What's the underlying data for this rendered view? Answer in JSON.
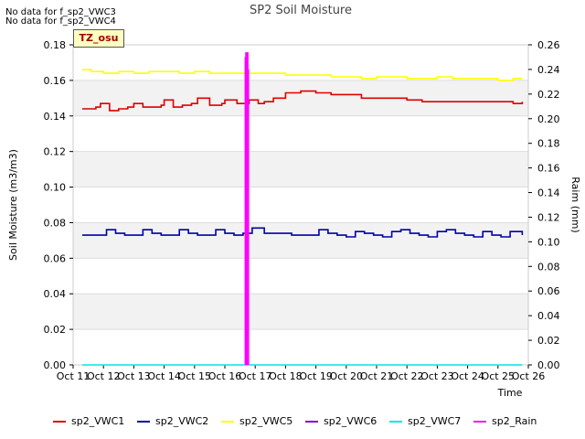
{
  "notes": [
    "No data for f_sp2_VWC3",
    "No data for f_sp2_VWC4"
  ],
  "tz_label": "TZ_osu",
  "chart_data": {
    "type": "line",
    "title": "SP2 Soil Moisture",
    "xlabel": "Time",
    "ylabel": "Soil Moisture (m3/m3)",
    "y2label": "Raim (mm)",
    "x_ticks": [
      "Oct 11",
      "Oct 12",
      "Oct 13",
      "Oct 14",
      "Oct 15",
      "Oct 16",
      "Oct 17",
      "Oct 18",
      "Oct 19",
      "Oct 20",
      "Oct 21",
      "Oct 22",
      "Oct 23",
      "Oct 24",
      "Oct 25",
      "Oct 26"
    ],
    "xlim": [
      0,
      15
    ],
    "ylim": [
      0,
      0.18
    ],
    "y_ticks": [
      0.0,
      0.02,
      0.04,
      0.06,
      0.08,
      0.1,
      0.12,
      0.14,
      0.16,
      0.18
    ],
    "y2lim": [
      0,
      0.26
    ],
    "y2_ticks": [
      0.0,
      0.02,
      0.04,
      0.06,
      0.08,
      0.1,
      0.12,
      0.14,
      0.16,
      0.18,
      0.2,
      0.22,
      0.24,
      0.26
    ],
    "series": [
      {
        "name": "sp2_VWC1",
        "color": "#dd0000",
        "axis": "left",
        "x": [
          0.3,
          0.5,
          0.75,
          0.9,
          1.0,
          1.2,
          1.5,
          1.8,
          2.0,
          2.3,
          2.6,
          2.9,
          3.0,
          3.3,
          3.6,
          3.9,
          4.1,
          4.5,
          4.9,
          5.0,
          5.4,
          5.8,
          6.1,
          6.3,
          6.6,
          7.0,
          7.5,
          8.0,
          8.5,
          9.0,
          9.5,
          10.0,
          10.5,
          11.0,
          11.5,
          12.0,
          12.5,
          13.0,
          13.5,
          14.0,
          14.5,
          14.8
        ],
        "y": [
          0.144,
          0.144,
          0.145,
          0.147,
          0.147,
          0.143,
          0.144,
          0.145,
          0.147,
          0.145,
          0.145,
          0.146,
          0.149,
          0.145,
          0.146,
          0.147,
          0.15,
          0.146,
          0.147,
          0.149,
          0.147,
          0.149,
          0.147,
          0.148,
          0.15,
          0.153,
          0.154,
          0.153,
          0.152,
          0.152,
          0.15,
          0.15,
          0.15,
          0.149,
          0.148,
          0.148,
          0.148,
          0.148,
          0.148,
          0.148,
          0.147,
          0.148
        ]
      },
      {
        "name": "sp2_VWC2",
        "color": "#0000aa",
        "axis": "left",
        "x": [
          0.3,
          0.6,
          0.9,
          1.1,
          1.4,
          1.7,
          2.0,
          2.3,
          2.6,
          2.9,
          3.2,
          3.5,
          3.8,
          4.1,
          4.4,
          4.7,
          5.0,
          5.3,
          5.6,
          5.9,
          6.3,
          6.6,
          6.9,
          7.2,
          7.5,
          7.8,
          8.1,
          8.4,
          8.7,
          9.0,
          9.3,
          9.6,
          9.9,
          10.2,
          10.5,
          10.8,
          11.1,
          11.4,
          11.7,
          12.0,
          12.3,
          12.6,
          12.9,
          13.2,
          13.5,
          13.8,
          14.1,
          14.4,
          14.8
        ],
        "y": [
          0.073,
          0.073,
          0.073,
          0.076,
          0.074,
          0.073,
          0.073,
          0.076,
          0.074,
          0.073,
          0.073,
          0.076,
          0.074,
          0.073,
          0.073,
          0.076,
          0.074,
          0.073,
          0.074,
          0.077,
          0.074,
          0.074,
          0.074,
          0.073,
          0.073,
          0.073,
          0.076,
          0.074,
          0.073,
          0.072,
          0.075,
          0.074,
          0.073,
          0.072,
          0.075,
          0.076,
          0.074,
          0.073,
          0.072,
          0.075,
          0.076,
          0.074,
          0.073,
          0.072,
          0.075,
          0.073,
          0.072,
          0.075,
          0.073
        ]
      },
      {
        "name": "sp2_VWC5",
        "color": "#ffff00",
        "axis": "left",
        "x": [
          0.3,
          0.6,
          1.0,
          1.5,
          2.0,
          2.5,
          3.0,
          3.5,
          4.0,
          4.5,
          5.0,
          5.5,
          6.0,
          6.5,
          7.0,
          7.5,
          8.0,
          8.5,
          9.0,
          9.5,
          10.0,
          10.5,
          11.0,
          11.5,
          12.0,
          12.5,
          13.0,
          13.5,
          14.0,
          14.5,
          14.8
        ],
        "y": [
          0.166,
          0.165,
          0.164,
          0.165,
          0.164,
          0.165,
          0.165,
          0.164,
          0.165,
          0.164,
          0.164,
          0.164,
          0.164,
          0.164,
          0.163,
          0.163,
          0.163,
          0.162,
          0.162,
          0.161,
          0.162,
          0.162,
          0.161,
          0.161,
          0.162,
          0.161,
          0.161,
          0.161,
          0.16,
          0.161,
          0.161
        ]
      },
      {
        "name": "sp2_VWC6",
        "color": "#8800cc",
        "axis": "left",
        "x": [],
        "y": []
      },
      {
        "name": "sp2_VWC7",
        "color": "#00e5e5",
        "axis": "left",
        "x": [
          0.3,
          14.8
        ],
        "y": [
          0.0,
          0.0
        ]
      },
      {
        "name": "sp2_Rain",
        "color": "#ff00ff",
        "axis": "right",
        "type": "spike",
        "x": [
          5.68,
          5.7,
          5.72,
          5.75,
          5.77
        ],
        "y": [
          0.25,
          0.254,
          0.25,
          0.254,
          0.24
        ]
      }
    ],
    "grid": true,
    "legend_position": "bottom"
  }
}
